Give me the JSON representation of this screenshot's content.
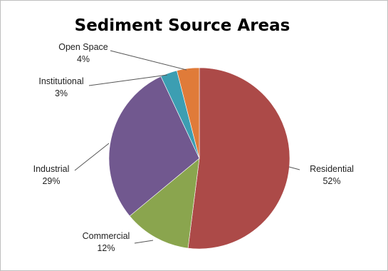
{
  "chart_data": {
    "type": "pie",
    "title": "Sediment Source Areas",
    "slices": [
      {
        "label": "Residential",
        "value": 52,
        "value_label": "52%",
        "color": "#ac4a48"
      },
      {
        "label": "Commercial",
        "value": 12,
        "value_label": "12%",
        "color": "#8aa54e"
      },
      {
        "label": "Industrial",
        "value": 29,
        "value_label": "29%",
        "color": "#71588f"
      },
      {
        "label": "Institutional",
        "value": 3,
        "value_label": "3%",
        "color": "#3c9eb2"
      },
      {
        "label": "Open Space",
        "value": 4,
        "value_label": "4%",
        "color": "#e07b39"
      }
    ],
    "start": "12 o'clock",
    "direction": "clockwise",
    "legend": "none (leader-line labels)"
  }
}
